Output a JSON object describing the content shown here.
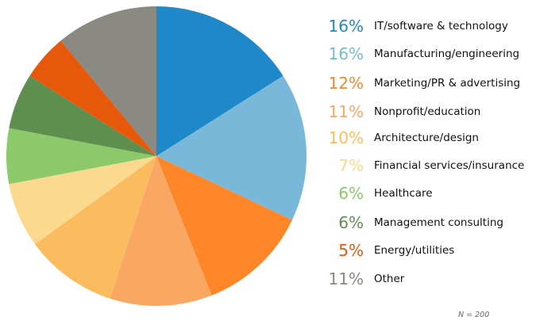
{
  "chart_data": {
    "type": "pie",
    "start": "top",
    "direction": "clockwise",
    "slices": [
      {
        "label": "IT/software & technology",
        "value": 16,
        "display": "16%",
        "color": "#1f88c8"
      },
      {
        "label": "Manufacturing/engineering",
        "value": 16,
        "display": "16%",
        "color": "#7ab8d9"
      },
      {
        "label": "Marketing/PR & advertising",
        "value": 12,
        "display": "12%",
        "color": "#fd8628"
      },
      {
        "label": "Nonprofit/education",
        "value": 11,
        "display": "11%",
        "color": "#f9a763"
      },
      {
        "label": "Architecture/design",
        "value": 10,
        "display": "10%",
        "color": "#fabc5e"
      },
      {
        "label": "Financial services/insurance",
        "value": 7,
        "display": "7%",
        "color": "#fbd98f"
      },
      {
        "label": "Healthcare",
        "value": 6,
        "display": "6%",
        "color": "#8bc96a"
      },
      {
        "label": "Management consulting",
        "value": 6,
        "display": "6%",
        "color": "#5f8f4f"
      },
      {
        "label": "Energy/utilities",
        "value": 5,
        "display": "5%",
        "color": "#e6580a"
      },
      {
        "label": "Other",
        "value": 11,
        "display": "11%",
        "color": "#8a8a82"
      }
    ],
    "legend_position": "right",
    "note": "N = 200"
  }
}
